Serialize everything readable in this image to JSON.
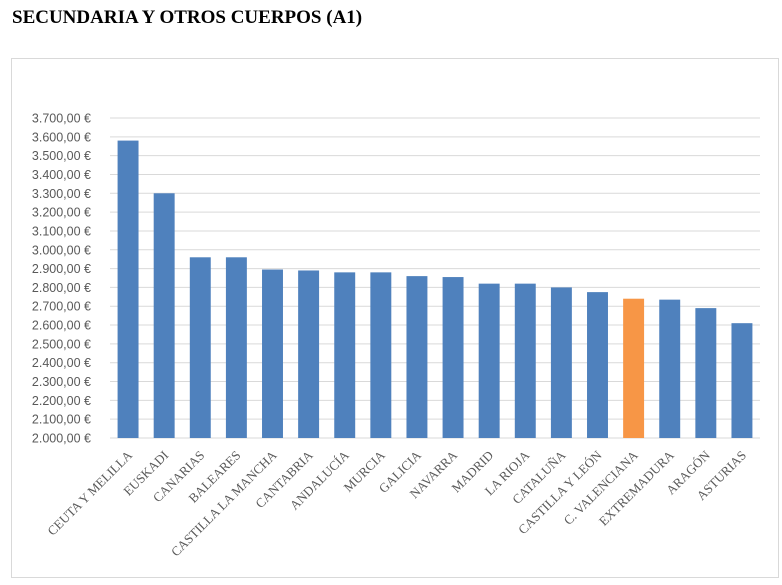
{
  "page": {
    "title": "SECUNDARIA Y OTROS CUERPOS (A1)"
  },
  "chart_data": {
    "type": "bar",
    "title": "",
    "xlabel": "",
    "ylabel": "",
    "ylim": [
      2000,
      3700
    ],
    "y_tick_step": 100,
    "y_tick_labels": [
      "2.000,00 €",
      "2.100,00 €",
      "2.200,00 €",
      "2.300,00 €",
      "2.400,00 €",
      "2.500,00 €",
      "2.600,00 €",
      "2.700,00 €",
      "2.800,00 €",
      "2.900,00 €",
      "3.000,00 €",
      "3.100,00 €",
      "3.200,00 €",
      "3.300,00 €",
      "3.400,00 €",
      "3.500,00 €",
      "3.600,00 €",
      "3.700,00 €"
    ],
    "grid": true,
    "legend": "none",
    "categories": [
      "CEUTA Y MELILLA",
      "EUSKADI",
      "CANARIAS",
      "BALEARES",
      "CASTILLA LA MANCHA",
      "CANTABRIA",
      "ANDALUCÍA",
      "MURCIA",
      "GALICIA",
      "NAVARRA",
      "MADRID",
      "LA RIOJA",
      "CATALUÑA",
      "CASTILLA Y LEÓN",
      "C. VALENCIANA",
      "EXTREMADURA",
      "ARAGÓN",
      "ASTURIAS"
    ],
    "values": [
      3580,
      3300,
      2960,
      2960,
      2895,
      2890,
      2880,
      2880,
      2860,
      2855,
      2820,
      2820,
      2800,
      2775,
      2740,
      2735,
      2690,
      2610
    ],
    "colors": {
      "default": "#4f81bd",
      "highlight": "#f79646",
      "grid": "#d9d9d9",
      "text": "#595959"
    },
    "highlight_index": 14
  }
}
